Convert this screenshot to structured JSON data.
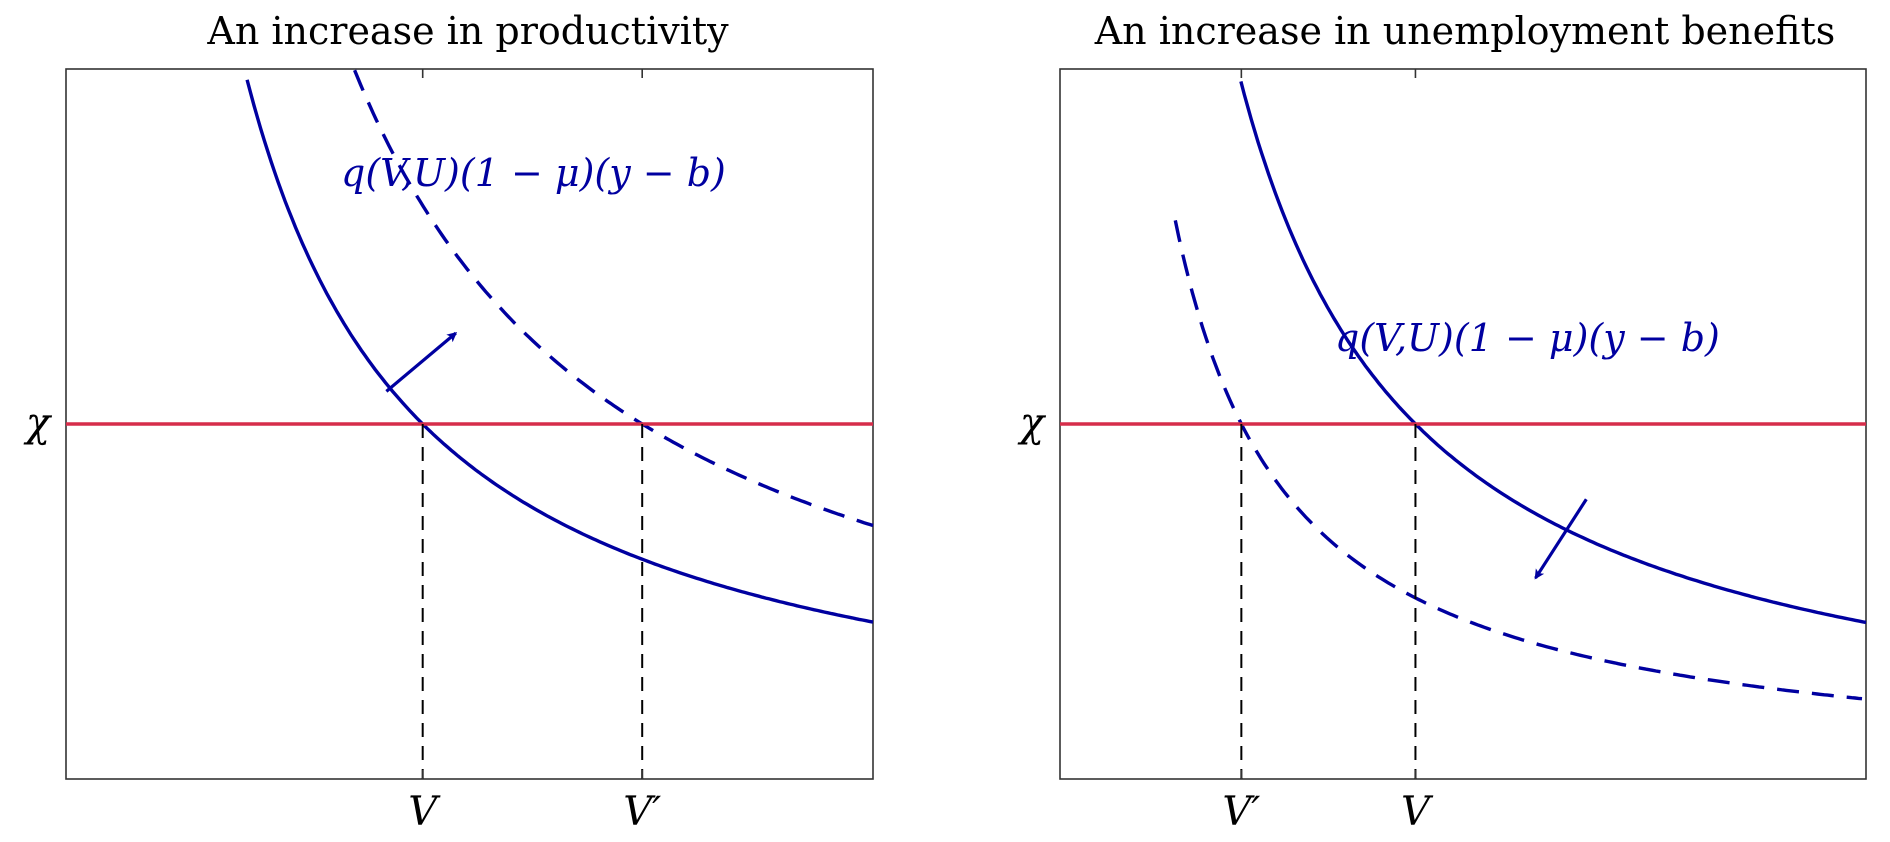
{
  "colors": {
    "curve": "#0000a0",
    "horizontal_line": "#d62d4a",
    "axes": "#333333",
    "guide": "#000000"
  },
  "chart_data": [
    {
      "type": "line",
      "title": "An increase in productivity",
      "xlabel": "",
      "ylabel": "",
      "xlim": [
        0,
        10
      ],
      "ylim": [
        0,
        10
      ],
      "grid": false,
      "curve_label": "q(V,U)(1 − μ)(y − b)",
      "horizontal_line": {
        "label": "χ",
        "y": 5
      },
      "x_ticks": [
        {
          "label": "V",
          "x": 4.42
        },
        {
          "label": "V′",
          "x": 7.14
        }
      ],
      "series": [
        {
          "style": "solid",
          "k": 22.1,
          "x_start": 1.43,
          "x_end": 10
        },
        {
          "style": "dashed",
          "k": 35.7,
          "x_start": 2.26,
          "x_end": 10
        }
      ],
      "shift_arrow": {
        "direction": "out",
        "from": [
          3.97,
          5.46
        ],
        "to": [
          4.83,
          6.28
        ]
      }
    },
    {
      "type": "line",
      "title": "An increase in unemployment benefits",
      "xlabel": "",
      "ylabel": "",
      "xlim": [
        0,
        10
      ],
      "ylim": [
        0,
        10
      ],
      "grid": false,
      "curve_label": "q(V,U)(1 − μ)(y − b)",
      "horizontal_line": {
        "label": "χ",
        "y": 5
      },
      "x_ticks": [
        {
          "label": "V′",
          "x": 2.25
        },
        {
          "label": "V",
          "x": 4.41
        }
      ],
      "series": [
        {
          "style": "solid",
          "k": 22.05,
          "x_start": 1.43,
          "x_end": 10
        },
        {
          "style": "dashed",
          "k": 11.25,
          "x_start": 1.43,
          "x_end": 9.95
        }
      ],
      "shift_arrow": {
        "direction": "in",
        "from": [
          6.53,
          3.94
        ],
        "to": [
          5.9,
          2.83
        ]
      }
    }
  ]
}
